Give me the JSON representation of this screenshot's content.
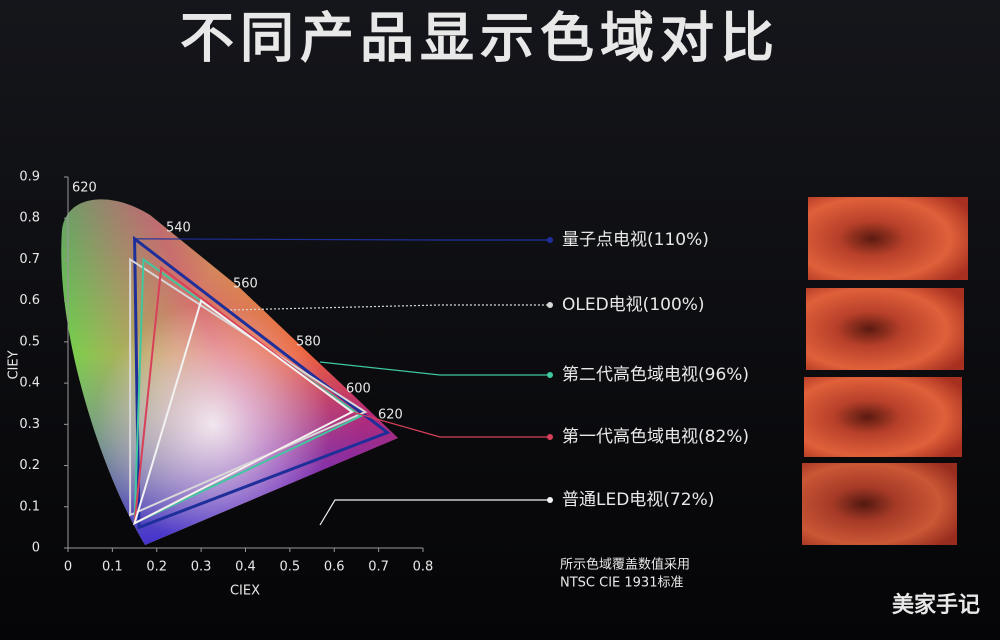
{
  "chart_data": {
    "type": "gamut",
    "title": "不同产品显示色域对比",
    "xlabel": "CIEX",
    "ylabel": "CIEY",
    "xlim": [
      0,
      0.8
    ],
    "ylim": [
      0,
      0.9
    ],
    "xticks": [
      0,
      0.1,
      0.2,
      0.3,
      0.4,
      0.5,
      0.6,
      0.7,
      0.8
    ],
    "yticks": [
      0,
      0.1,
      0.2,
      0.3,
      0.4,
      0.5,
      0.6,
      0.7,
      0.8,
      0.9
    ],
    "wavelength_labels": [
      "620",
      "540",
      "560",
      "580",
      "600",
      "620"
    ],
    "series": [
      {
        "name": "量子点电视(110%)",
        "color": "#1f2f9a",
        "x": [
          0.15,
          0.72,
          0.16
        ],
        "y": [
          0.75,
          0.28,
          0.05
        ]
      },
      {
        "name": "OLED电视(100%)",
        "color": "#d8d8d8",
        "x": [
          0.14,
          0.67,
          0.14
        ],
        "y": [
          0.7,
          0.33,
          0.08
        ]
      },
      {
        "name": "第二代高色域电视(96%)",
        "color": "#3fc7a0",
        "x": [
          0.17,
          0.66,
          0.15
        ],
        "y": [
          0.7,
          0.32,
          0.06
        ]
      },
      {
        "name": "第一代高色域电视(82%)",
        "color": "#d8405a",
        "x": [
          0.21,
          0.64,
          0.15
        ],
        "y": [
          0.68,
          0.33,
          0.06
        ]
      },
      {
        "name": "普通LED电视(72%)",
        "color": "#f2f2f2",
        "x": [
          0.3,
          0.64,
          0.15
        ],
        "y": [
          0.6,
          0.33,
          0.06
        ]
      }
    ],
    "note": [
      "所示色域覆盖数值采用",
      "NTSC CIE  1931标准"
    ],
    "watermark": "美家手记"
  }
}
